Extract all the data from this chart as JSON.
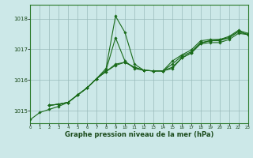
{
  "title": "Graphe pression niveau de la mer (hPa)",
  "bg_color": "#cce8e8",
  "plot_bg_color": "#cce8e8",
  "grid_color": "#99bbbb",
  "line_color": "#1a6b1a",
  "marker_color": "#1a6b1a",
  "x_min": 0,
  "x_max": 23,
  "y_min": 1014.6,
  "y_max": 1018.45,
  "yticks": [
    1015,
    1016,
    1017,
    1018
  ],
  "xticks": [
    0,
    1,
    2,
    3,
    4,
    5,
    6,
    7,
    8,
    9,
    10,
    11,
    12,
    13,
    14,
    15,
    16,
    17,
    18,
    19,
    20,
    21,
    22,
    23
  ],
  "series": [
    [
      0,
      1014.72
    ],
    [
      1,
      1014.95
    ],
    [
      2,
      1015.05
    ],
    [
      3,
      1015.15
    ],
    [
      4,
      1015.28
    ],
    [
      5,
      1015.52
    ],
    [
      6,
      1015.75
    ],
    [
      7,
      1016.05
    ],
    [
      8,
      1016.38
    ],
    [
      9,
      1018.08
    ],
    [
      10,
      1017.55
    ],
    [
      11,
      1016.52
    ],
    [
      12,
      1016.32
    ],
    [
      13,
      1016.3
    ],
    [
      14,
      1016.3
    ],
    [
      15,
      1016.38
    ],
    [
      16,
      1016.72
    ],
    [
      17,
      1016.88
    ],
    [
      18,
      1017.2
    ],
    [
      19,
      1017.28
    ],
    [
      20,
      1017.32
    ],
    [
      21,
      1017.38
    ],
    [
      22,
      1017.58
    ],
    [
      23,
      1017.48
    ]
  ],
  "series2": [
    [
      2,
      1015.18
    ],
    [
      3,
      1015.22
    ],
    [
      4,
      1015.28
    ],
    [
      5,
      1015.52
    ],
    [
      6,
      1015.75
    ],
    [
      7,
      1016.05
    ],
    [
      8,
      1016.32
    ],
    [
      9,
      1017.38
    ],
    [
      10,
      1016.62
    ],
    [
      11,
      1016.38
    ],
    [
      12,
      1016.32
    ],
    [
      13,
      1016.3
    ],
    [
      14,
      1016.3
    ],
    [
      15,
      1016.42
    ],
    [
      16,
      1016.72
    ],
    [
      17,
      1016.88
    ],
    [
      18,
      1017.18
    ],
    [
      19,
      1017.22
    ],
    [
      20,
      1017.22
    ],
    [
      21,
      1017.32
    ],
    [
      22,
      1017.52
    ],
    [
      23,
      1017.48
    ]
  ],
  "series3": [
    [
      2,
      1015.18
    ],
    [
      3,
      1015.22
    ],
    [
      4,
      1015.28
    ],
    [
      5,
      1015.52
    ],
    [
      6,
      1015.75
    ],
    [
      7,
      1016.05
    ],
    [
      8,
      1016.28
    ],
    [
      9,
      1016.52
    ],
    [
      10,
      1016.58
    ],
    [
      11,
      1016.42
    ],
    [
      12,
      1016.32
    ],
    [
      13,
      1016.3
    ],
    [
      14,
      1016.3
    ],
    [
      15,
      1016.52
    ],
    [
      16,
      1016.78
    ],
    [
      17,
      1016.92
    ],
    [
      18,
      1017.22
    ],
    [
      19,
      1017.28
    ],
    [
      20,
      1017.28
    ],
    [
      21,
      1017.38
    ],
    [
      22,
      1017.58
    ],
    [
      23,
      1017.48
    ]
  ],
  "series4": [
    [
      2,
      1015.18
    ],
    [
      3,
      1015.22
    ],
    [
      4,
      1015.28
    ],
    [
      5,
      1015.52
    ],
    [
      6,
      1015.75
    ],
    [
      7,
      1016.05
    ],
    [
      8,
      1016.28
    ],
    [
      9,
      1016.48
    ],
    [
      10,
      1016.58
    ],
    [
      11,
      1016.42
    ],
    [
      12,
      1016.32
    ],
    [
      13,
      1016.3
    ],
    [
      14,
      1016.3
    ],
    [
      15,
      1016.62
    ],
    [
      16,
      1016.82
    ],
    [
      17,
      1016.98
    ],
    [
      18,
      1017.28
    ],
    [
      19,
      1017.32
    ],
    [
      20,
      1017.32
    ],
    [
      21,
      1017.42
    ],
    [
      22,
      1017.62
    ],
    [
      23,
      1017.52
    ]
  ]
}
